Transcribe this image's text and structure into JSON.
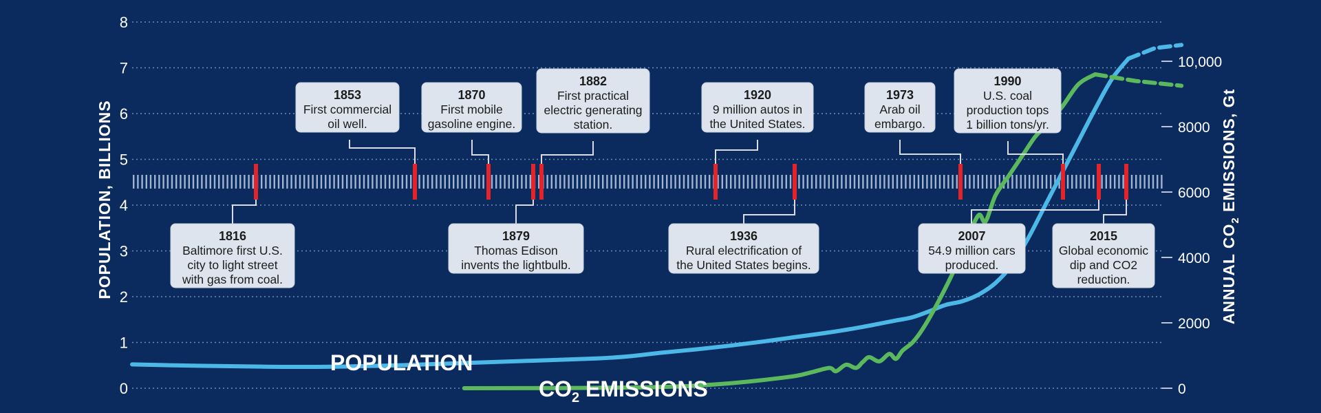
{
  "chart_data": {
    "type": "line",
    "y_left": {
      "label": "POPULATION, BILLIONS",
      "range": [
        0,
        8
      ],
      "ticks": [
        "0",
        "1",
        "2",
        "3",
        "4",
        "5",
        "6",
        "7",
        "8"
      ]
    },
    "y_right": {
      "label_main": "ANNUAL CO",
      "label_sub": "2",
      "label_end": " EMISSIONS, Gt",
      "range": [
        0,
        10000
      ],
      "ticks": [
        "0",
        "2000",
        "4000",
        "6000",
        "8000",
        "10,000"
      ]
    },
    "x_range": [
      1750,
      2050
    ],
    "series": [
      {
        "name": "POPULATION",
        "name_sub": "",
        "name_end": "",
        "color": "#4cb8e8",
        "axis": "left",
        "points": [
          [
            1750,
            0.52
          ],
          [
            1770,
            0.49
          ],
          [
            1790,
            0.47
          ],
          [
            1810,
            0.47
          ],
          [
            1830,
            0.5
          ],
          [
            1850,
            0.55
          ],
          [
            1870,
            0.6
          ],
          [
            1890,
            0.65
          ],
          [
            1900,
            0.7
          ],
          [
            1910,
            0.78
          ],
          [
            1920,
            0.85
          ],
          [
            1930,
            0.93
          ],
          [
            1940,
            1.02
          ],
          [
            1950,
            1.12
          ],
          [
            1960,
            1.22
          ],
          [
            1970,
            1.34
          ],
          [
            1980,
            1.48
          ],
          [
            1985,
            1.55
          ],
          [
            1990,
            1.68
          ],
          [
            1995,
            1.82
          ],
          [
            2000,
            1.9
          ],
          [
            2005,
            2.05
          ],
          [
            2010,
            2.3
          ],
          [
            2015,
            2.7
          ],
          [
            2020,
            3.3
          ],
          [
            2025,
            4.0
          ],
          [
            2030,
            4.7
          ],
          [
            2035,
            5.4
          ],
          [
            2040,
            6.1
          ],
          [
            2045,
            6.75
          ],
          [
            2050,
            7.2
          ]
        ],
        "projection": [
          [
            2050,
            7.2
          ],
          [
            2058,
            7.43
          ],
          [
            2066,
            7.5
          ]
        ]
      },
      {
        "name": "CO",
        "name_sub": "2",
        "name_end": " EMISSIONS",
        "color": "#5cb85c",
        "axis": "right",
        "points": [
          [
            1850,
            0
          ],
          [
            1880,
            5
          ],
          [
            1900,
            20
          ],
          [
            1910,
            40
          ],
          [
            1920,
            80
          ],
          [
            1930,
            150
          ],
          [
            1940,
            250
          ],
          [
            1950,
            380
          ],
          [
            1955,
            500
          ],
          [
            1960,
            620
          ],
          [
            1962,
            520
          ],
          [
            1965,
            720
          ],
          [
            1968,
            620
          ],
          [
            1970,
            800
          ],
          [
            1972,
            950
          ],
          [
            1975,
            820
          ],
          [
            1978,
            1050
          ],
          [
            1980,
            900
          ],
          [
            1982,
            1150
          ],
          [
            1985,
            1400
          ],
          [
            1988,
            1800
          ],
          [
            1992,
            2500
          ],
          [
            1997,
            3500
          ],
          [
            2002,
            4700
          ],
          [
            2005,
            5300
          ],
          [
            2007,
            5100
          ],
          [
            2010,
            5900
          ],
          [
            2014,
            6500
          ],
          [
            2018,
            7100
          ],
          [
            2022,
            7700
          ],
          [
            2025,
            8000
          ],
          [
            2030,
            8600
          ],
          [
            2035,
            9300
          ],
          [
            2040,
            9600
          ]
        ],
        "projection": [
          [
            2040,
            9600
          ],
          [
            2052,
            9400
          ],
          [
            2066,
            9250
          ]
        ]
      }
    ],
    "events": [
      {
        "year": "1816",
        "lines": [
          "Baltimore first U.S.",
          "city to light street",
          "with gas from coal."
        ],
        "placement": "below"
      },
      {
        "year": "1853",
        "lines": [
          "First commercial",
          "oil well."
        ],
        "placement": "above"
      },
      {
        "year": "1870",
        "lines": [
          "First mobile",
          "gasoline engine."
        ],
        "placement": "above"
      },
      {
        "year": "1879",
        "lines": [
          "Thomas Edison",
          "invents the lightbulb."
        ],
        "placement": "below"
      },
      {
        "year": "1882",
        "lines": [
          "First practical",
          "electric generating",
          "station."
        ],
        "placement": "above"
      },
      {
        "year": "1920",
        "lines": [
          "9 million autos in",
          "the United States."
        ],
        "placement": "above"
      },
      {
        "year": "1936",
        "lines": [
          "Rural electrification of",
          "the United States begins."
        ],
        "placement": "below"
      },
      {
        "year": "1973",
        "lines": [
          "Arab oil",
          "embargo."
        ],
        "placement": "above"
      },
      {
        "year": "1990",
        "lines": [
          "U.S. coal",
          "production tops",
          "1 billion tons/yr."
        ],
        "placement": "above"
      },
      {
        "year": "2007",
        "lines": [
          "54.9 million cars",
          "produced."
        ],
        "placement": "below"
      },
      {
        "year": "2015",
        "lines": [
          "Global economic",
          "dip and CO2",
          "reduction."
        ],
        "placement": "below"
      }
    ]
  }
}
